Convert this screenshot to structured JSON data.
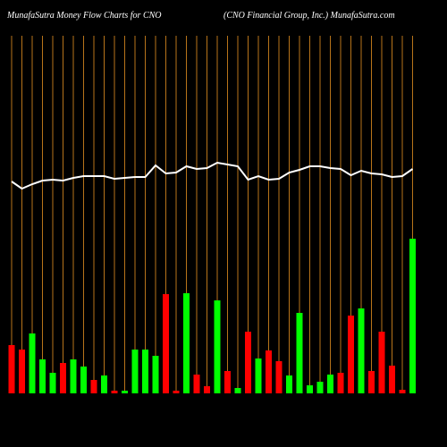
{
  "chart_data": {
    "type": "bar",
    "title": "MunafaSutra  Money Flow  Charts for CNO",
    "subtitle": "(CNO Financial Group,  Inc.) MunafaSutra.com",
    "categories": [
      null,
      null,
      null,
      null,
      null,
      null,
      null,
      null,
      null,
      null,
      null,
      null,
      null,
      null,
      null,
      null,
      null,
      null,
      null,
      null,
      null,
      null,
      null,
      null,
      null,
      null,
      null,
      null,
      null,
      null,
      null,
      null,
      null,
      null,
      null,
      null,
      null,
      null,
      null,
      null
    ],
    "values": [
      54,
      49,
      67,
      38,
      23,
      34,
      38,
      30,
      15,
      20,
      3,
      3,
      49,
      49,
      42,
      111,
      3,
      112,
      21,
      8,
      104,
      25,
      6,
      69,
      39,
      48,
      36,
      20,
      90,
      9,
      13,
      21,
      23,
      87,
      95,
      25,
      69,
      31,
      4,
      173
    ],
    "colors": [
      "#ff0000",
      "#ff0000",
      "#00ff00",
      "#00ff00",
      "#00ff00",
      "#ff0000",
      "#00ff00",
      "#00ff00",
      "#ff0000",
      "#00ff00",
      "#ff0000",
      "#00ff00",
      "#00ff00",
      "#00ff00",
      "#00ff00",
      "#ff0000",
      "#ff0000",
      "#00ff00",
      "#ff0000",
      "#ff0000",
      "#00ff00",
      "#ff0000",
      "#00ff00",
      "#ff0000",
      "#00ff00",
      "#ff0000",
      "#ff0000",
      "#00ff00",
      "#00ff00",
      "#00ff00",
      "#00ff00",
      "#00ff00",
      "#ff0000",
      "#ff0000",
      "#00ff00",
      "#ff0000",
      "#ff0000",
      "#ff0000",
      "#ff0000",
      "#00ff00"
    ],
    "price": [
      237,
      229,
      234,
      238,
      239,
      238,
      241,
      243,
      243,
      243,
      240,
      241,
      242,
      242,
      255,
      246,
      247,
      254,
      251,
      252,
      258,
      256,
      254,
      239,
      243,
      239,
      240,
      247,
      250,
      254,
      254,
      252,
      251,
      244,
      249,
      246,
      245,
      242,
      243,
      251
    ],
    "price_color": "#ffffff",
    "grid_color": "#b8741a",
    "ylim": [
      0,
      400
    ]
  }
}
